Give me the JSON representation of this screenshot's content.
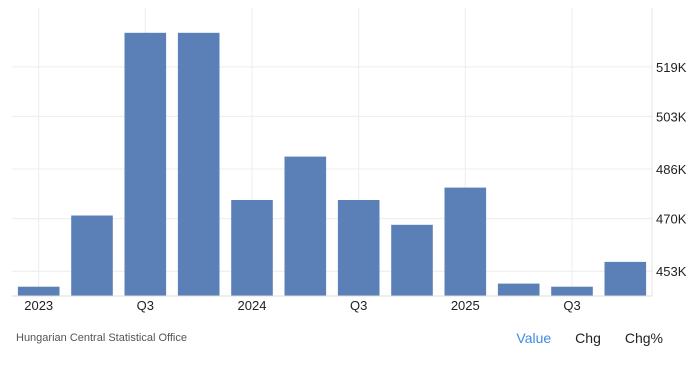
{
  "chart_data": {
    "type": "bar",
    "categories": [
      "Q1 2023",
      "Q2 2023",
      "Q3 2023",
      "Q4 2023",
      "Q1 2024",
      "Q2 2024",
      "Q3 2024",
      "Q4 2024",
      "Q1 2025",
      "Q2 2025",
      "Q3 2025",
      "Q4 2025"
    ],
    "values": [
      448,
      471,
      530,
      530,
      476,
      490,
      476,
      468,
      480,
      449,
      448,
      456
    ],
    "x_tick_labels": [
      {
        "index": 0,
        "label": "2023"
      },
      {
        "index": 2,
        "label": "Q3"
      },
      {
        "index": 4,
        "label": "2024"
      },
      {
        "index": 6,
        "label": "Q3"
      },
      {
        "index": 8,
        "label": "2025"
      },
      {
        "index": 10,
        "label": "Q3"
      }
    ],
    "y_ticks": [
      {
        "value": 453,
        "label": "453K"
      },
      {
        "value": 470,
        "label": "470K"
      },
      {
        "value": 486,
        "label": "486K"
      },
      {
        "value": 503,
        "label": "503K"
      },
      {
        "value": 519,
        "label": "519K"
      }
    ],
    "ylim": [
      445,
      538
    ],
    "bar_color": "#5b80b8",
    "grid": true,
    "y_axis_side": "right"
  },
  "footer": {
    "source": "Hungarian Central Statistical Office",
    "tabs": [
      "Value",
      "Chg",
      "Chg%"
    ],
    "active_color": "#3f8be0"
  }
}
